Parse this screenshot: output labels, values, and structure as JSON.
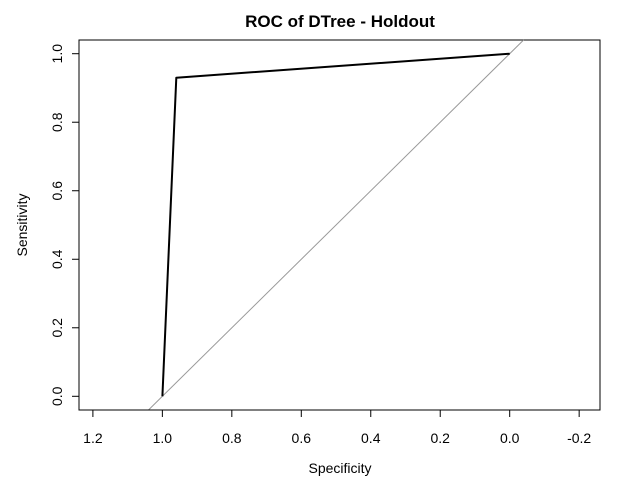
{
  "chart_data": {
    "type": "line",
    "title": "ROC of DTree - Holdout",
    "xlabel": "Specificity",
    "ylabel": "Sensitivity",
    "x_reversed": true,
    "xlim": [
      1.24,
      -0.26
    ],
    "ylim": [
      -0.04,
      1.04
    ],
    "xticks": [
      1.2,
      1.0,
      0.8,
      0.6,
      0.4,
      0.2,
      0.0,
      -0.2
    ],
    "xtick_labels": [
      "1.2",
      "1.0",
      "0.8",
      "0.6",
      "0.4",
      "0.2",
      "0.0",
      "-0.2"
    ],
    "yticks": [
      0.0,
      0.2,
      0.4,
      0.6,
      0.8,
      1.0
    ],
    "ytick_labels": [
      "0.0",
      "0.2",
      "0.4",
      "0.6",
      "0.8",
      "1.0"
    ],
    "series": [
      {
        "x": [
          1.0,
          0.96,
          0.0
        ],
        "y": [
          0.0,
          0.93,
          1.0
        ],
        "color": "#000000"
      }
    ],
    "reference_line": {
      "from": [
        1.04,
        -0.04
      ],
      "to": [
        -0.04,
        1.04
      ],
      "color": "#999999"
    },
    "grid": false
  }
}
